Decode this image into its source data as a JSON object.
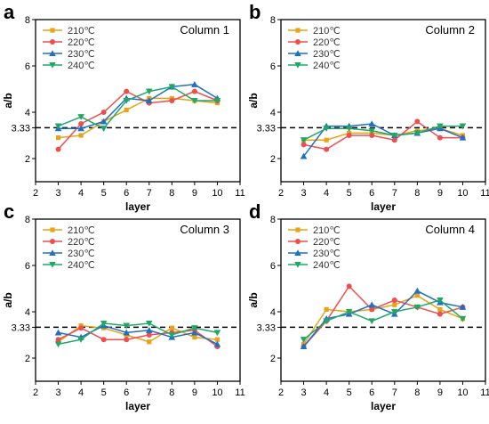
{
  "chart_data": [
    {
      "type": "line",
      "panel_label": "a",
      "title": "Column 1",
      "xlabel": "layer",
      "ylabel": "a/b",
      "xlim": [
        2,
        11
      ],
      "ylim": [
        1,
        8
      ],
      "xticks": [
        "2",
        "3",
        "4",
        "5",
        "6",
        "7",
        "8",
        "9",
        "10",
        "11"
      ],
      "yticks": [
        "2",
        "3.33",
        "4",
        "6",
        "8"
      ],
      "reference_line": {
        "value": 3.33,
        "style": "dashed"
      },
      "legend_position": "top-left",
      "x": [
        3,
        4,
        5,
        6,
        7,
        8,
        9,
        10
      ],
      "series": [
        {
          "name": "210℃",
          "color": "#e8a317",
          "marker": "square",
          "values": [
            2.9,
            3.0,
            3.6,
            4.1,
            4.6,
            4.6,
            4.5,
            4.4
          ]
        },
        {
          "name": "220℃",
          "color": "#ef4e4e",
          "marker": "circle",
          "values": [
            2.4,
            3.5,
            4.0,
            4.9,
            4.4,
            4.5,
            4.9,
            4.5
          ]
        },
        {
          "name": "230℃",
          "color": "#1f6fc5",
          "marker": "triangle-up",
          "values": [
            3.3,
            3.3,
            3.6,
            4.6,
            4.5,
            5.1,
            5.2,
            4.6
          ]
        },
        {
          "name": "240℃",
          "color": "#20a768",
          "marker": "triangle-down",
          "values": [
            3.4,
            3.8,
            3.3,
            4.5,
            4.9,
            5.1,
            4.5,
            4.5
          ]
        }
      ]
    },
    {
      "type": "line",
      "panel_label": "b",
      "title": "Column 2",
      "xlabel": "layer",
      "ylabel": "a/b",
      "xlim": [
        2,
        11
      ],
      "ylim": [
        1,
        8
      ],
      "xticks": [
        "2",
        "3",
        "4",
        "5",
        "6",
        "7",
        "8",
        "9",
        "10",
        "11"
      ],
      "yticks": [
        "2",
        "3.33",
        "4",
        "6",
        "8"
      ],
      "reference_line": {
        "value": 3.33,
        "style": "dashed"
      },
      "legend_position": "top-left",
      "x": [
        3,
        4,
        5,
        6,
        7,
        8,
        9,
        10
      ],
      "series": [
        {
          "name": "210℃",
          "color": "#e8a317",
          "marker": "square",
          "values": [
            2.8,
            2.8,
            3.1,
            3.1,
            3.0,
            3.2,
            3.3,
            3.0
          ]
        },
        {
          "name": "220℃",
          "color": "#ef4e4e",
          "marker": "circle",
          "values": [
            2.6,
            2.4,
            3.0,
            3.0,
            2.8,
            3.6,
            2.9,
            2.9
          ]
        },
        {
          "name": "230℃",
          "color": "#1f6fc5",
          "marker": "triangle-up",
          "values": [
            2.1,
            3.4,
            3.4,
            3.5,
            3.0,
            3.1,
            3.3,
            2.9
          ]
        },
        {
          "name": "240℃",
          "color": "#20a768",
          "marker": "triangle-down",
          "values": [
            2.8,
            3.3,
            3.3,
            3.2,
            3.0,
            3.1,
            3.4,
            3.4
          ]
        }
      ]
    },
    {
      "type": "line",
      "panel_label": "c",
      "title": "Column 3",
      "xlabel": "layer",
      "ylabel": "a/b",
      "xlim": [
        2,
        11
      ],
      "ylim": [
        1,
        8
      ],
      "xticks": [
        "2",
        "3",
        "4",
        "5",
        "6",
        "7",
        "8",
        "9",
        "10",
        "11"
      ],
      "yticks": [
        "2",
        "3.33",
        "4",
        "6",
        "8"
      ],
      "reference_line": {
        "value": 3.33,
        "style": "dashed"
      },
      "legend_position": "top-left",
      "x": [
        3,
        4,
        5,
        6,
        7,
        8,
        9,
        10
      ],
      "series": [
        {
          "name": "210℃",
          "color": "#e8a317",
          "marker": "square",
          "values": [
            2.7,
            3.4,
            3.3,
            3.0,
            2.7,
            3.3,
            2.9,
            2.8
          ]
        },
        {
          "name": "220℃",
          "color": "#ef4e4e",
          "marker": "circle",
          "values": [
            2.8,
            3.3,
            2.8,
            2.8,
            3.0,
            3.1,
            3.2,
            2.5
          ]
        },
        {
          "name": "230℃",
          "color": "#1f6fc5",
          "marker": "triangle-up",
          "values": [
            3.1,
            2.9,
            3.4,
            3.1,
            3.2,
            2.9,
            3.1,
            2.6
          ]
        },
        {
          "name": "240℃",
          "color": "#20a768",
          "marker": "triangle-down",
          "values": [
            2.6,
            2.8,
            3.5,
            3.4,
            3.5,
            3.0,
            3.3,
            3.1
          ]
        }
      ]
    },
    {
      "type": "line",
      "panel_label": "d",
      "title": "Column 4",
      "xlabel": "layer",
      "ylabel": "a/b",
      "xlim": [
        2,
        11
      ],
      "ylim": [
        1,
        8
      ],
      "xticks": [
        "2",
        "3",
        "4",
        "5",
        "6",
        "7",
        "8",
        "9",
        "10",
        "11"
      ],
      "yticks": [
        "2",
        "3.33",
        "4",
        "6",
        "8"
      ],
      "reference_line": {
        "value": 3.33,
        "style": "dashed"
      },
      "legend_position": "top-left",
      "x": [
        3,
        4,
        5,
        6,
        7,
        8,
        9,
        10
      ],
      "series": [
        {
          "name": "210℃",
          "color": "#e8a317",
          "marker": "square",
          "values": [
            2.6,
            4.1,
            4.0,
            4.1,
            4.3,
            4.7,
            4.1,
            3.7
          ]
        },
        {
          "name": "220℃",
          "color": "#ef4e4e",
          "marker": "circle",
          "values": [
            2.5,
            3.6,
            5.1,
            4.1,
            4.5,
            4.2,
            3.9,
            4.2
          ]
        },
        {
          "name": "230℃",
          "color": "#1f6fc5",
          "marker": "triangle-up",
          "values": [
            2.5,
            3.7,
            3.9,
            4.3,
            3.9,
            4.9,
            4.4,
            4.2
          ]
        },
        {
          "name": "240℃",
          "color": "#20a768",
          "marker": "triangle-down",
          "values": [
            2.8,
            3.6,
            4.0,
            3.6,
            4.0,
            4.2,
            4.5,
            3.7
          ]
        }
      ]
    }
  ]
}
